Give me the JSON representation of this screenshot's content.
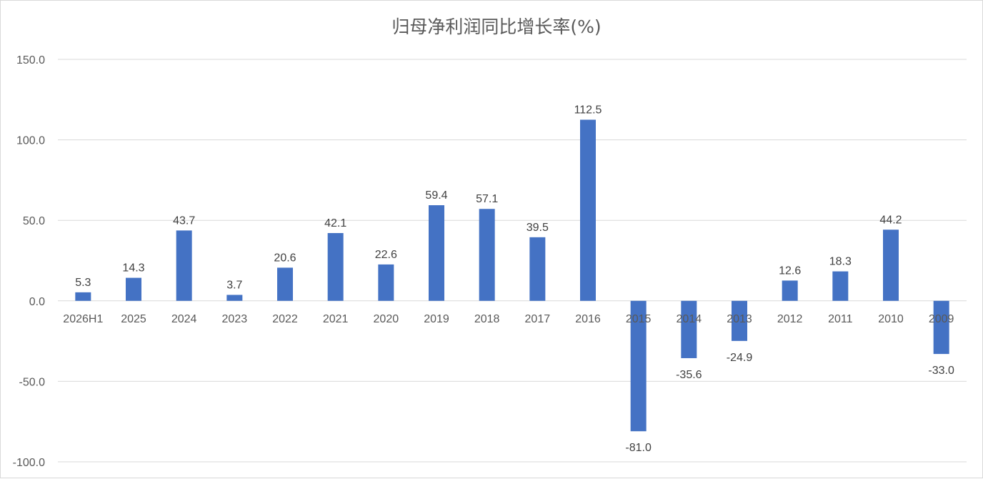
{
  "chart_data": {
    "type": "bar",
    "title": "归母净利润同比增长率(%)",
    "xlabel": "",
    "ylabel": "",
    "categories": [
      "2026H1",
      "2025",
      "2024",
      "2023",
      "2022",
      "2021",
      "2020",
      "2019",
      "2018",
      "2017",
      "2016",
      "2015",
      "2014",
      "2013",
      "2012",
      "2011",
      "2010",
      "2009"
    ],
    "series": [
      {
        "values": [
          5.3,
          14.3,
          43.7,
          3.7,
          20.6,
          42.1,
          22.6,
          59.4,
          57.1,
          39.5,
          112.5,
          -81.0,
          -35.6,
          -24.9,
          12.6,
          18.3,
          44.2,
          -33.0
        ],
        "labels": [
          "5.3",
          "14.3",
          "43.7",
          "3.7",
          "20.6",
          "42.1",
          "22.6",
          "59.4",
          "57.1",
          "39.5",
          "112.5",
          "-81.0",
          "-35.6",
          "-24.9",
          "12.6",
          "18.3",
          "44.2",
          "-33.0"
        ]
      }
    ],
    "ylim": [
      -100,
      150
    ],
    "yticks": [
      "150.0",
      "100.0",
      "50.0",
      "0.0",
      "-50.0",
      "-100.0"
    ],
    "grid": true,
    "legend": "none",
    "colors": {
      "bar": "#4472c4",
      "grid": "#d9d9d9",
      "text": "#595959"
    }
  }
}
